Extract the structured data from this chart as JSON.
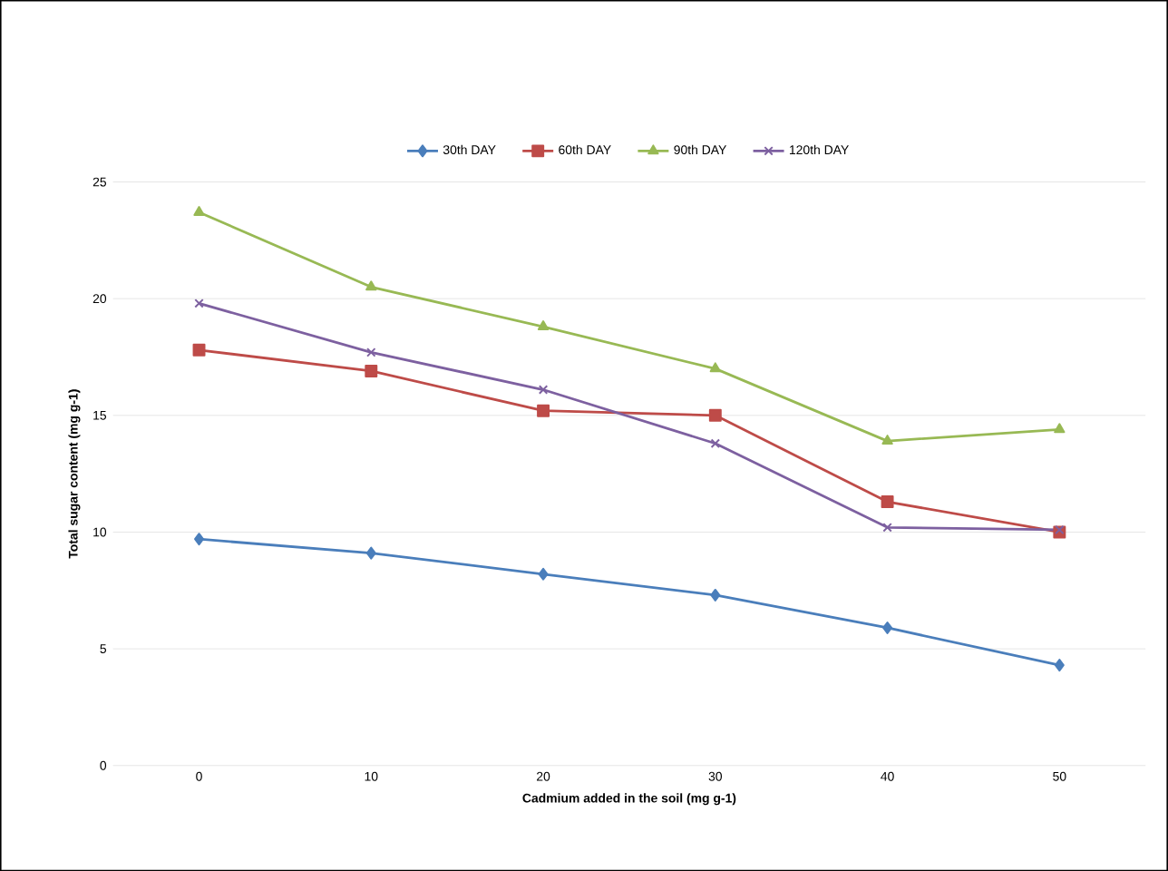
{
  "chart_data": {
    "type": "line",
    "xlabel": "Cadmium added in the soil (mg g-1)",
    "ylabel": "Total sugar content (mg g-1)",
    "categories": [
      "0",
      "10",
      "20",
      "30",
      "40",
      "50"
    ],
    "series": [
      {
        "name": "30th DAY",
        "color": "#4a7ebb",
        "marker": "diamond",
        "values": [
          9.7,
          9.1,
          8.2,
          7.3,
          5.9,
          4.3
        ]
      },
      {
        "name": "60th DAY",
        "color": "#be4b48",
        "marker": "square",
        "values": [
          17.8,
          16.9,
          15.2,
          15.0,
          11.3,
          10.0
        ]
      },
      {
        "name": "90th DAY",
        "color": "#98b954",
        "marker": "triangle",
        "values": [
          23.7,
          20.5,
          18.8,
          17.0,
          13.9,
          14.4
        ]
      },
      {
        "name": "120th DAY",
        "color": "#7d60a0",
        "marker": "cross",
        "values": [
          19.8,
          17.7,
          16.1,
          13.8,
          10.2,
          10.1
        ]
      }
    ],
    "ylim": [
      0,
      25
    ],
    "yticks": [
      0,
      5,
      10,
      15,
      20,
      25
    ],
    "grid": "y",
    "legend": "top"
  }
}
